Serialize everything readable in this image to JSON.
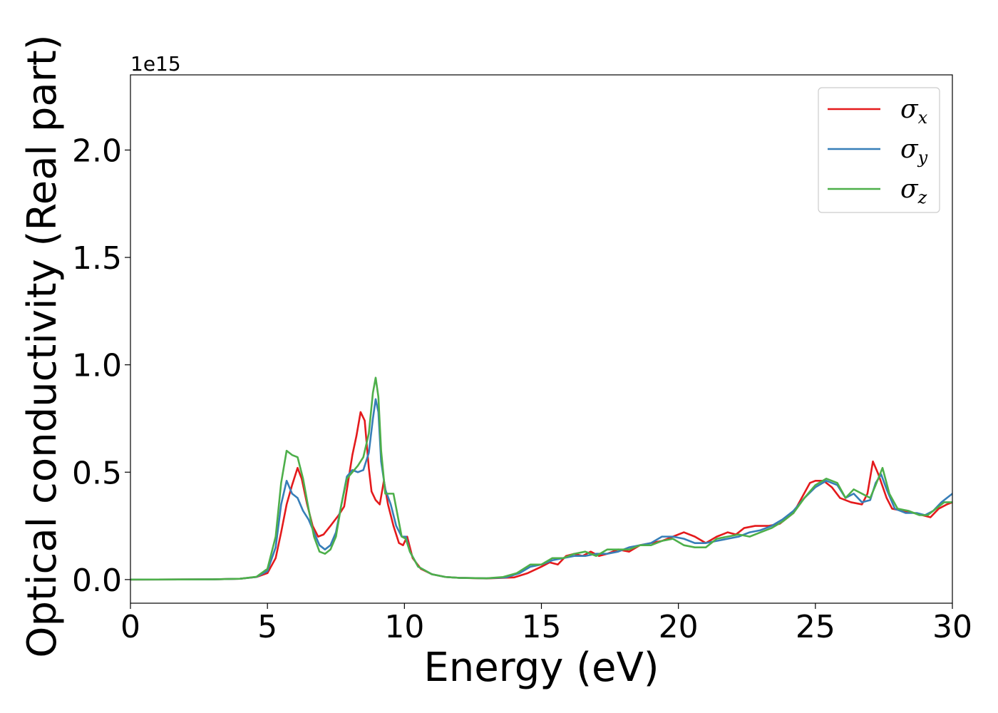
{
  "chart_data": {
    "type": "line",
    "title": "",
    "xlabel": "Energy (eV)",
    "ylabel": "Optical conductivity (Real part)",
    "y_offset_text": "1e15",
    "y_scale": 1000000000000000.0,
    "xlim": [
      0,
      30
    ],
    "ylim": [
      -0.11,
      2.35
    ],
    "xticks": [
      0,
      5,
      10,
      15,
      20,
      25,
      30
    ],
    "xtick_labels": [
      "0",
      "5",
      "10",
      "15",
      "20",
      "25",
      "30"
    ],
    "yticks": [
      0.0,
      0.5,
      1.0,
      1.5,
      2.0
    ],
    "ytick_labels": [
      "0.0",
      "0.5",
      "1.0",
      "1.5",
      "2.0"
    ],
    "grid": false,
    "legend_position": "top-right",
    "series": [
      {
        "name": "σx",
        "symbol": "σ",
        "subscript": "x",
        "color": "#e41a1c",
        "points": [
          [
            0,
            0
          ],
          [
            3,
            0.001
          ],
          [
            4,
            0.004
          ],
          [
            4.6,
            0.012
          ],
          [
            5,
            0.03
          ],
          [
            5.3,
            0.1
          ],
          [
            5.5,
            0.22
          ],
          [
            5.7,
            0.35
          ],
          [
            5.9,
            0.44
          ],
          [
            6.1,
            0.52
          ],
          [
            6.25,
            0.47
          ],
          [
            6.45,
            0.35
          ],
          [
            6.65,
            0.25
          ],
          [
            6.85,
            0.2
          ],
          [
            7.05,
            0.21
          ],
          [
            7.3,
            0.25
          ],
          [
            7.6,
            0.3
          ],
          [
            7.8,
            0.34
          ],
          [
            7.95,
            0.46
          ],
          [
            8.1,
            0.58
          ],
          [
            8.25,
            0.67
          ],
          [
            8.4,
            0.78
          ],
          [
            8.55,
            0.74
          ],
          [
            8.7,
            0.52
          ],
          [
            8.8,
            0.41
          ],
          [
            8.95,
            0.37
          ],
          [
            9.1,
            0.35
          ],
          [
            9.25,
            0.46
          ],
          [
            9.4,
            0.35
          ],
          [
            9.6,
            0.25
          ],
          [
            9.8,
            0.17
          ],
          [
            9.95,
            0.16
          ],
          [
            10.1,
            0.2
          ],
          [
            10.3,
            0.1
          ],
          [
            10.6,
            0.05
          ],
          [
            11,
            0.025
          ],
          [
            11.5,
            0.012
          ],
          [
            12,
            0.008
          ],
          [
            13,
            0.005
          ],
          [
            14,
            0.01
          ],
          [
            14.5,
            0.03
          ],
          [
            15,
            0.06
          ],
          [
            15.3,
            0.08
          ],
          [
            15.6,
            0.07
          ],
          [
            15.9,
            0.11
          ],
          [
            16.2,
            0.12
          ],
          [
            16.5,
            0.11
          ],
          [
            16.8,
            0.13
          ],
          [
            17.1,
            0.11
          ],
          [
            17.4,
            0.12
          ],
          [
            17.8,
            0.14
          ],
          [
            18.2,
            0.13
          ],
          [
            18.6,
            0.16
          ],
          [
            19,
            0.17
          ],
          [
            19.4,
            0.18
          ],
          [
            19.8,
            0.2
          ],
          [
            20.2,
            0.22
          ],
          [
            20.6,
            0.2
          ],
          [
            21,
            0.17
          ],
          [
            21.4,
            0.2
          ],
          [
            21.8,
            0.22
          ],
          [
            22.1,
            0.21
          ],
          [
            22.4,
            0.24
          ],
          [
            22.8,
            0.25
          ],
          [
            23.3,
            0.25
          ],
          [
            23.7,
            0.26
          ],
          [
            24.2,
            0.31
          ],
          [
            24.5,
            0.38
          ],
          [
            24.8,
            0.45
          ],
          [
            25,
            0.46
          ],
          [
            25.3,
            0.46
          ],
          [
            25.6,
            0.43
          ],
          [
            25.9,
            0.38
          ],
          [
            26.3,
            0.36
          ],
          [
            26.7,
            0.35
          ],
          [
            26.9,
            0.4
          ],
          [
            27.1,
            0.55
          ],
          [
            27.3,
            0.49
          ],
          [
            27.6,
            0.38
          ],
          [
            27.8,
            0.33
          ],
          [
            28.2,
            0.32
          ],
          [
            28.6,
            0.31
          ],
          [
            28.9,
            0.3
          ],
          [
            29.2,
            0.29
          ],
          [
            29.5,
            0.33
          ],
          [
            29.8,
            0.35
          ],
          [
            30,
            0.36
          ]
        ]
      },
      {
        "name": "σy",
        "symbol": "σ",
        "subscript": "y",
        "color": "#377eb8",
        "points": [
          [
            0,
            0
          ],
          [
            3,
            0.001
          ],
          [
            4,
            0.004
          ],
          [
            4.6,
            0.012
          ],
          [
            5,
            0.04
          ],
          [
            5.3,
            0.15
          ],
          [
            5.5,
            0.35
          ],
          [
            5.7,
            0.46
          ],
          [
            5.9,
            0.4
          ],
          [
            6.1,
            0.38
          ],
          [
            6.3,
            0.32
          ],
          [
            6.5,
            0.28
          ],
          [
            6.7,
            0.22
          ],
          [
            6.9,
            0.16
          ],
          [
            7.1,
            0.14
          ],
          [
            7.3,
            0.16
          ],
          [
            7.5,
            0.22
          ],
          [
            7.7,
            0.35
          ],
          [
            7.9,
            0.48
          ],
          [
            8.1,
            0.51
          ],
          [
            8.3,
            0.5
          ],
          [
            8.5,
            0.51
          ],
          [
            8.7,
            0.59
          ],
          [
            8.85,
            0.75
          ],
          [
            8.95,
            0.84
          ],
          [
            9.05,
            0.78
          ],
          [
            9.15,
            0.55
          ],
          [
            9.3,
            0.42
          ],
          [
            9.5,
            0.35
          ],
          [
            9.7,
            0.25
          ],
          [
            9.9,
            0.2
          ],
          [
            10.05,
            0.2
          ],
          [
            10.2,
            0.13
          ],
          [
            10.5,
            0.06
          ],
          [
            11,
            0.025
          ],
          [
            11.5,
            0.012
          ],
          [
            12,
            0.008
          ],
          [
            13,
            0.006
          ],
          [
            13.7,
            0.01
          ],
          [
            14.2,
            0.03
          ],
          [
            14.6,
            0.06
          ],
          [
            15,
            0.07
          ],
          [
            15.4,
            0.09
          ],
          [
            15.8,
            0.1
          ],
          [
            16.2,
            0.11
          ],
          [
            16.6,
            0.11
          ],
          [
            17,
            0.12
          ],
          [
            17.4,
            0.12
          ],
          [
            17.8,
            0.13
          ],
          [
            18.2,
            0.15
          ],
          [
            18.6,
            0.16
          ],
          [
            19,
            0.17
          ],
          [
            19.4,
            0.2
          ],
          [
            19.8,
            0.2
          ],
          [
            20.2,
            0.19
          ],
          [
            20.6,
            0.17
          ],
          [
            21,
            0.17
          ],
          [
            21.4,
            0.18
          ],
          [
            21.8,
            0.19
          ],
          [
            22.2,
            0.2
          ],
          [
            22.6,
            0.22
          ],
          [
            23,
            0.23
          ],
          [
            23.4,
            0.25
          ],
          [
            23.8,
            0.28
          ],
          [
            24.2,
            0.32
          ],
          [
            24.6,
            0.38
          ],
          [
            25,
            0.43
          ],
          [
            25.4,
            0.46
          ],
          [
            25.8,
            0.44
          ],
          [
            26.1,
            0.38
          ],
          [
            26.4,
            0.4
          ],
          [
            26.7,
            0.36
          ],
          [
            27,
            0.37
          ],
          [
            27.2,
            0.45
          ],
          [
            27.4,
            0.49
          ],
          [
            27.6,
            0.42
          ],
          [
            27.9,
            0.33
          ],
          [
            28.3,
            0.31
          ],
          [
            28.7,
            0.31
          ],
          [
            29,
            0.3
          ],
          [
            29.3,
            0.32
          ],
          [
            29.6,
            0.36
          ],
          [
            29.8,
            0.38
          ],
          [
            30,
            0.4
          ]
        ]
      },
      {
        "name": "σz",
        "symbol": "σ",
        "subscript": "z",
        "color": "#4daf4a",
        "points": [
          [
            0,
            0
          ],
          [
            3,
            0.001
          ],
          [
            4,
            0.004
          ],
          [
            4.6,
            0.013
          ],
          [
            5,
            0.05
          ],
          [
            5.3,
            0.2
          ],
          [
            5.5,
            0.45
          ],
          [
            5.7,
            0.6
          ],
          [
            5.9,
            0.58
          ],
          [
            6.1,
            0.57
          ],
          [
            6.3,
            0.47
          ],
          [
            6.5,
            0.33
          ],
          [
            6.7,
            0.2
          ],
          [
            6.9,
            0.13
          ],
          [
            7.1,
            0.12
          ],
          [
            7.3,
            0.14
          ],
          [
            7.5,
            0.2
          ],
          [
            7.7,
            0.35
          ],
          [
            7.9,
            0.47
          ],
          [
            8.1,
            0.5
          ],
          [
            8.3,
            0.53
          ],
          [
            8.5,
            0.57
          ],
          [
            8.7,
            0.68
          ],
          [
            8.85,
            0.87
          ],
          [
            8.95,
            0.94
          ],
          [
            9.05,
            0.85
          ],
          [
            9.15,
            0.6
          ],
          [
            9.3,
            0.4
          ],
          [
            9.45,
            0.4
          ],
          [
            9.6,
            0.4
          ],
          [
            9.75,
            0.3
          ],
          [
            9.9,
            0.2
          ],
          [
            10.05,
            0.19
          ],
          [
            10.2,
            0.13
          ],
          [
            10.5,
            0.06
          ],
          [
            11,
            0.025
          ],
          [
            11.5,
            0.012
          ],
          [
            12,
            0.008
          ],
          [
            13,
            0.006
          ],
          [
            13.6,
            0.012
          ],
          [
            14.1,
            0.03
          ],
          [
            14.6,
            0.07
          ],
          [
            15,
            0.07
          ],
          [
            15.4,
            0.1
          ],
          [
            15.8,
            0.1
          ],
          [
            16.2,
            0.12
          ],
          [
            16.6,
            0.13
          ],
          [
            17,
            0.11
          ],
          [
            17.4,
            0.14
          ],
          [
            17.8,
            0.14
          ],
          [
            18.2,
            0.14
          ],
          [
            18.6,
            0.16
          ],
          [
            19,
            0.16
          ],
          [
            19.4,
            0.18
          ],
          [
            19.8,
            0.19
          ],
          [
            20.2,
            0.16
          ],
          [
            20.6,
            0.15
          ],
          [
            21,
            0.15
          ],
          [
            21.4,
            0.19
          ],
          [
            21.8,
            0.2
          ],
          [
            22.2,
            0.21
          ],
          [
            22.6,
            0.2
          ],
          [
            23,
            0.22
          ],
          [
            23.4,
            0.24
          ],
          [
            23.8,
            0.27
          ],
          [
            24.2,
            0.31
          ],
          [
            24.6,
            0.38
          ],
          [
            25,
            0.44
          ],
          [
            25.4,
            0.47
          ],
          [
            25.8,
            0.45
          ],
          [
            26.1,
            0.38
          ],
          [
            26.4,
            0.42
          ],
          [
            26.7,
            0.4
          ],
          [
            27,
            0.38
          ],
          [
            27.2,
            0.44
          ],
          [
            27.45,
            0.52
          ],
          [
            27.7,
            0.4
          ],
          [
            28,
            0.33
          ],
          [
            28.4,
            0.32
          ],
          [
            28.8,
            0.3
          ],
          [
            29.1,
            0.3
          ],
          [
            29.4,
            0.33
          ],
          [
            29.7,
            0.36
          ],
          [
            30,
            0.36
          ]
        ]
      }
    ]
  }
}
